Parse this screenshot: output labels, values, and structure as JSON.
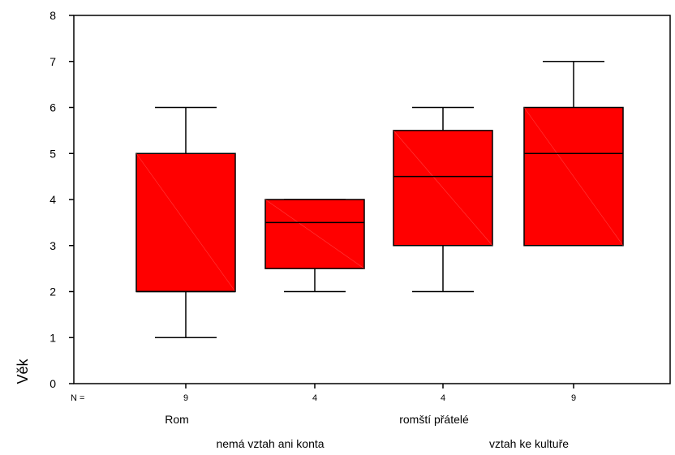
{
  "chart_data": {
    "type": "boxplot",
    "ylabel": "Věk",
    "ylim": [
      0,
      8
    ],
    "yticks": [
      "0",
      "1",
      "2",
      "3",
      "4",
      "5",
      "6",
      "7",
      "8"
    ],
    "n_prefix": "N =",
    "categories": [
      "Rom",
      "nemá vztah ani konta",
      "romští přátelé",
      "vztah ke kultuře"
    ],
    "n": [
      "9",
      "4",
      "4",
      "9"
    ],
    "boxes": [
      {
        "whisker_low": 1,
        "q1": 2,
        "median": 2,
        "q3": 5,
        "whisker_high": 6
      },
      {
        "whisker_low": 2,
        "q1": 2.5,
        "median": 3.5,
        "q3": 4,
        "whisker_high": 4
      },
      {
        "whisker_low": 2,
        "q1": 3,
        "median": 4.5,
        "q3": 5.5,
        "whisker_high": 6
      },
      {
        "whisker_low": 3,
        "q1": 3,
        "median": 5,
        "q3": 6,
        "whisker_high": 7
      }
    ],
    "box_color": "#ff0000",
    "line_color": "#000000",
    "grid": false
  }
}
